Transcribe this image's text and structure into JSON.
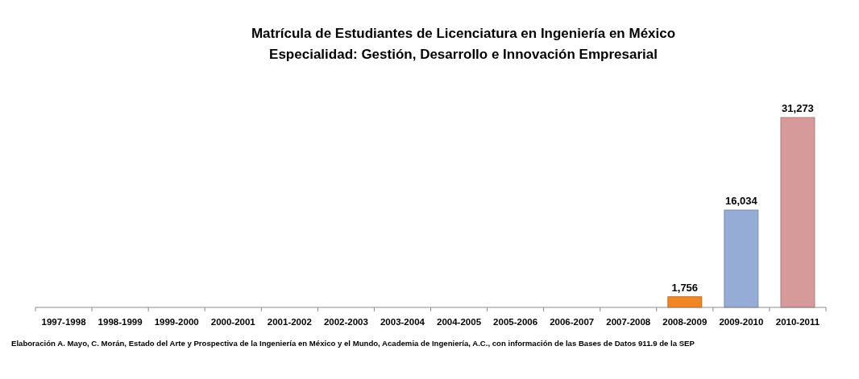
{
  "chart_data": {
    "type": "bar",
    "title": "Matrícula de Estudiantes de Licenciatura en Ingeniería en México",
    "subtitle": "Especialidad: Gestión, Desarrollo e Innovación Empresarial",
    "categories": [
      "1997-1998",
      "1998-1999",
      "1999-2000",
      "2000-2001",
      "2001-2002",
      "2002-2003",
      "2003-2004",
      "2004-2005",
      "2005-2006",
      "2006-2007",
      "2007-2008",
      "2008-2009",
      "2009-2010",
      "2010-2011"
    ],
    "values": [
      null,
      null,
      null,
      null,
      null,
      null,
      null,
      null,
      null,
      null,
      null,
      1756,
      16034,
      31273
    ],
    "colors": [
      null,
      null,
      null,
      null,
      null,
      null,
      null,
      null,
      null,
      null,
      null,
      "#f08524",
      "#95acd6",
      "#d79a9a"
    ],
    "value_labels": [
      null,
      null,
      null,
      null,
      null,
      null,
      null,
      null,
      null,
      null,
      null,
      "1,756",
      "16,034",
      "31,273"
    ],
    "annotations": [
      "Elaboración A. Mayo, C. Morán, Estado del Arte y Prospectiva de la Ingeniería en México y el Mundo,  Academia de Ingeniería, A.C., con información de las Bases de Datos 911.9 de la SEP"
    ]
  }
}
